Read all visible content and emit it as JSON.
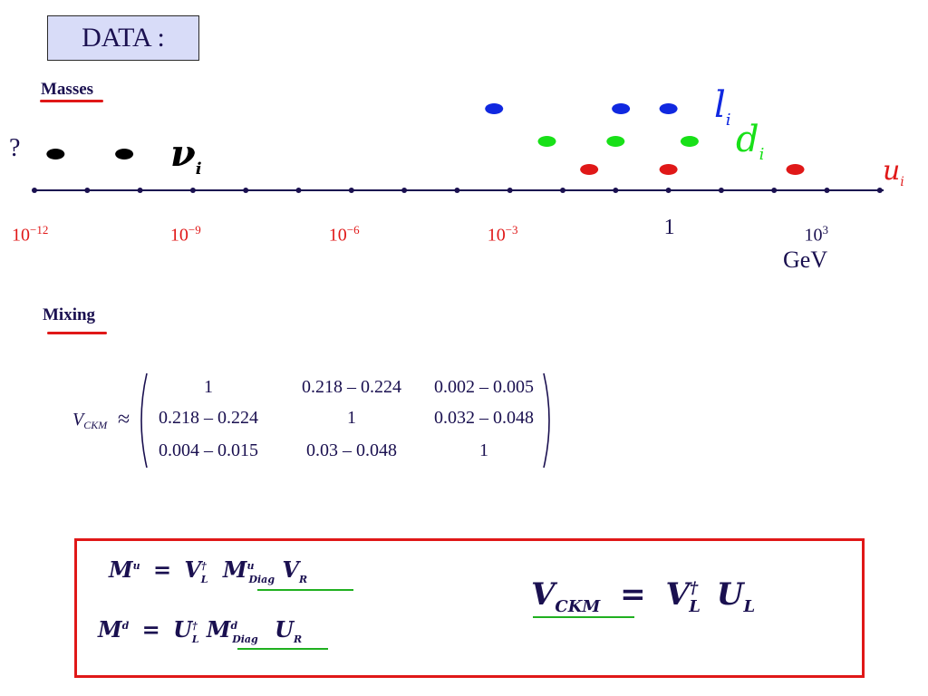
{
  "title": "DATA :",
  "masses": {
    "label": "Masses",
    "question_mark": "?",
    "axis_unit": "GeV",
    "ticks": [
      {
        "exp": -12,
        "label_base": "10",
        "label_sup": "−12"
      },
      {
        "exp": -9,
        "label_base": "10",
        "label_sup": "−9"
      },
      {
        "exp": -6,
        "label_base": "10",
        "label_sup": "−6"
      },
      {
        "exp": -3,
        "label_base": "10",
        "label_sup": "−3"
      },
      {
        "exp": 0,
        "label_base": "1",
        "label_sup": ""
      },
      {
        "exp": 3,
        "label_base": "10",
        "label_sup": "3"
      }
    ],
    "families": [
      {
        "symbol": "ν",
        "sub": "i",
        "color": "#000000",
        "log10_mass_gev": [
          -11.6,
          -10.3
        ]
      },
      {
        "symbol": "l",
        "sub": "i",
        "color": "#1028e0",
        "log10_mass_gev": [
          -3.3,
          -0.9,
          0
        ]
      },
      {
        "symbol": "d",
        "sub": "i",
        "color": "#18e018",
        "log10_mass_gev": [
          -2.3,
          -1.0,
          0.4
        ]
      },
      {
        "symbol": "u",
        "sub": "i",
        "color": "#e01818",
        "log10_mass_gev": [
          -1.5,
          0,
          2.4
        ]
      }
    ]
  },
  "mixing": {
    "label": "Mixing",
    "matrix_lhs": "V",
    "matrix_lhs_sub": "CKM",
    "approx_symbol": "≈",
    "rows": [
      [
        "1",
        "0.218 – 0.224",
        "0.002 – 0.005"
      ],
      [
        "0.218 – 0.224",
        "1",
        "0.032 – 0.048"
      ],
      [
        "0.004 – 0.015",
        "0.03 – 0.048",
        "1"
      ]
    ]
  },
  "equations": {
    "mu": {
      "lhs": "M",
      "lhs_sup": "u",
      "eq": "=",
      "v": "V",
      "v_sup": "†",
      "v_sub": "L",
      "m": "M",
      "m_sup": "u",
      "m_sub": "Diag",
      "r": "V",
      "r_sub": "R"
    },
    "md": {
      "lhs": "M",
      "lhs_sup": "d",
      "eq": "=",
      "v": "U",
      "v_sup": "†",
      "v_sub": "L",
      "m": "M",
      "m_sup": "d",
      "m_sub": "Diag",
      "r": "U",
      "r_sub": "R"
    },
    "vckm": {
      "lhs": "V",
      "lhs_sub": "CKM",
      "eq": "=",
      "a": "V",
      "a_sup": "†",
      "a_sub": "L",
      "b": "U",
      "b_sub": "L"
    }
  }
}
